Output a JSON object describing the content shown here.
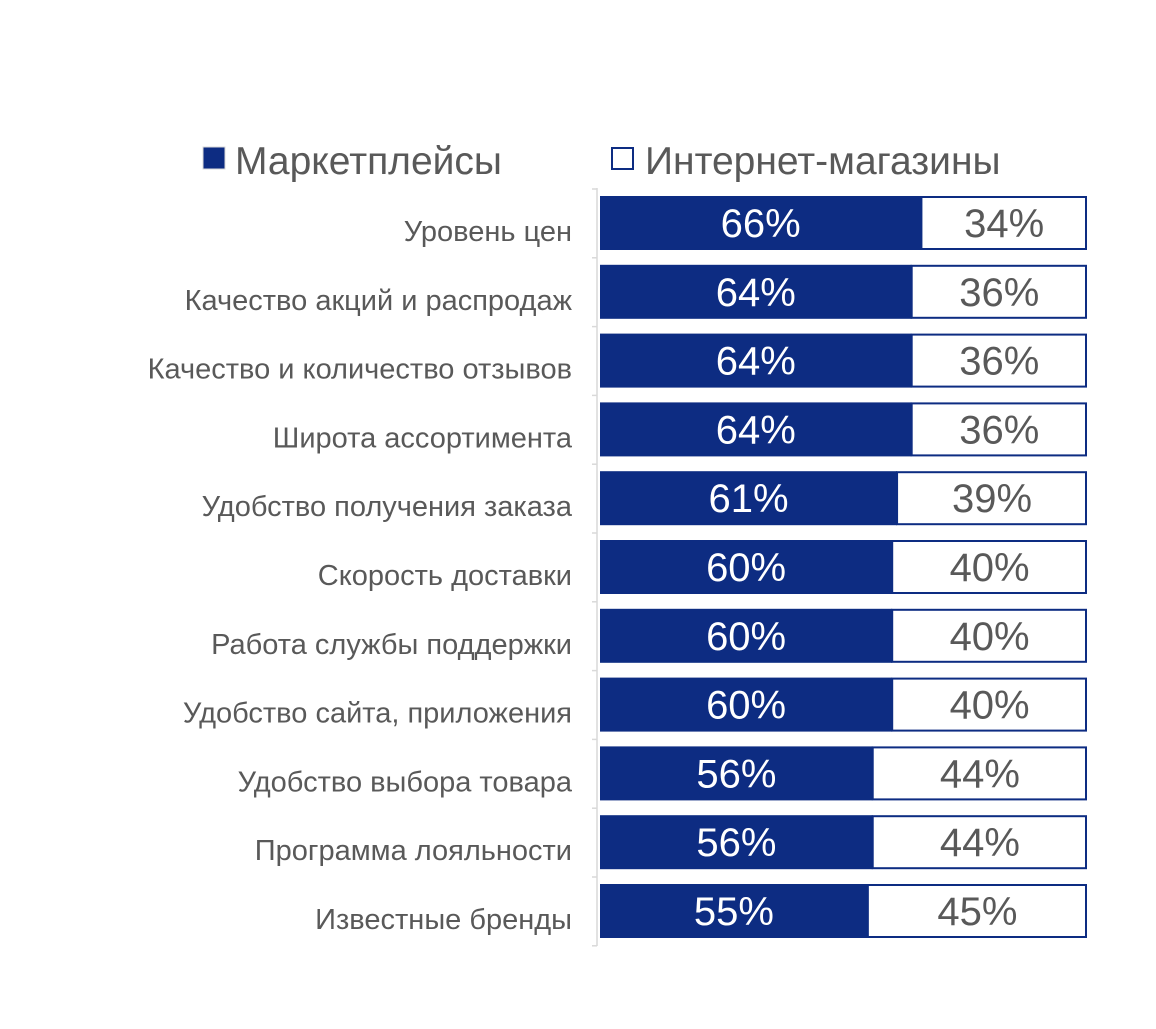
{
  "colors": {
    "primary": "#0d2c82",
    "secondary": "#ffffff",
    "border": "#0d2c82",
    "label_text": "#595959",
    "value_text_primary": "#ffffff",
    "value_text_secondary": "#595959",
    "axis_line": "#d9d9d9"
  },
  "chart_data": {
    "type": "bar",
    "orientation": "horizontal",
    "stacked": true,
    "percent_stacked": true,
    "categories": [
      "Уровень цен",
      "Качество акций и распродаж",
      "Качество и количество отзывов",
      "Широта ассортимента",
      "Удобство получения заказа",
      "Скорость доставки",
      "Работа службы поддержки",
      "Удобство сайта, приложения",
      "Удобство выбора товара",
      "Программа лояльности",
      "Известные бренды"
    ],
    "series": [
      {
        "name": "Маркетплейсы",
        "color": "#0d2c82",
        "values": [
          66,
          64,
          64,
          64,
          61,
          60,
          60,
          60,
          56,
          56,
          55
        ],
        "labels": [
          "66%",
          "64%",
          "64%",
          "64%",
          "61%",
          "60%",
          "60%",
          "60%",
          "56%",
          "56%",
          "55%"
        ]
      },
      {
        "name": "Интернет-магазины",
        "color": "#ffffff",
        "values": [
          34,
          36,
          36,
          36,
          39,
          40,
          40,
          40,
          44,
          44,
          45
        ],
        "labels": [
          "34%",
          "36%",
          "36%",
          "36%",
          "39%",
          "40%",
          "40%",
          "40%",
          "44%",
          "44%",
          "45%"
        ]
      }
    ],
    "xlim": [
      0,
      100
    ],
    "legend_position": "top",
    "grid": false
  }
}
